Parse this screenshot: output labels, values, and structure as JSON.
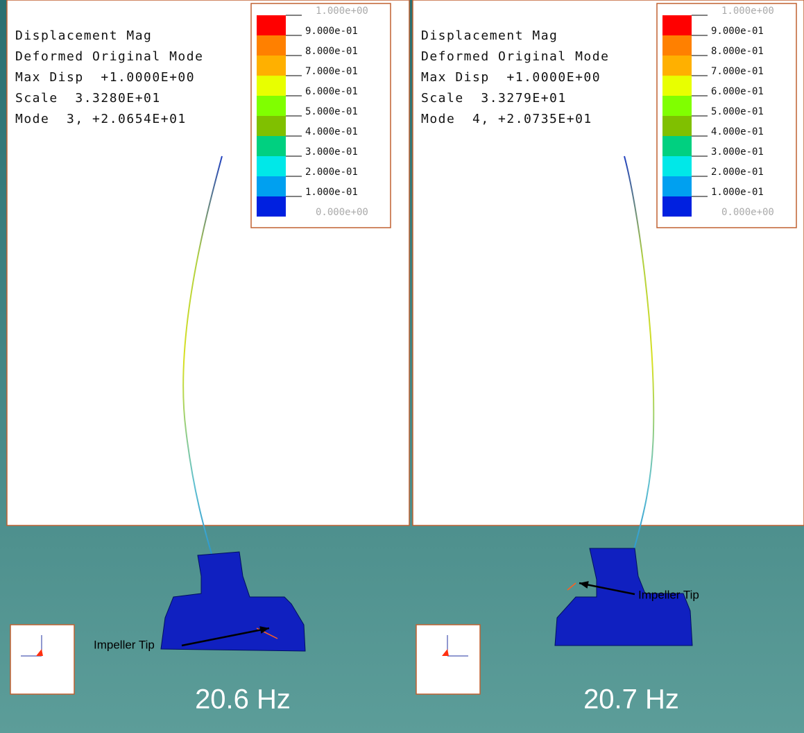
{
  "panels": [
    {
      "info": [
        "Displacement Mag",
        "Deformed Original Mode",
        "Max Disp  +1.0000E+00",
        "Scale  3.3280E+01",
        "Mode  3, +2.0654E+01"
      ],
      "legend": [
        "1.000e+00",
        "9.000e-01",
        "8.000e-01",
        "7.000e-01",
        "6.000e-01",
        "5.000e-01",
        "4.000e-01",
        "3.000e-01",
        "2.000e-01",
        "1.000e-01",
        "0.000e+00"
      ],
      "annotation": "Impeller Tip",
      "caption": "20.6 Hz"
    },
    {
      "info": [
        "Displacement Mag",
        "Deformed Original Mode",
        "Max Disp  +1.0000E+00",
        "Scale  3.3279E+01",
        "Mode  4, +2.0735E+01"
      ],
      "legend": [
        "1.000e+00",
        "9.000e-01",
        "8.000e-01",
        "7.000e-01",
        "6.000e-01",
        "5.000e-01",
        "4.000e-01",
        "3.000e-01",
        "2.000e-01",
        "1.000e-01",
        "0.000e+00"
      ],
      "annotation": "Impeller Tip",
      "caption": "20.7 Hz"
    }
  ]
}
